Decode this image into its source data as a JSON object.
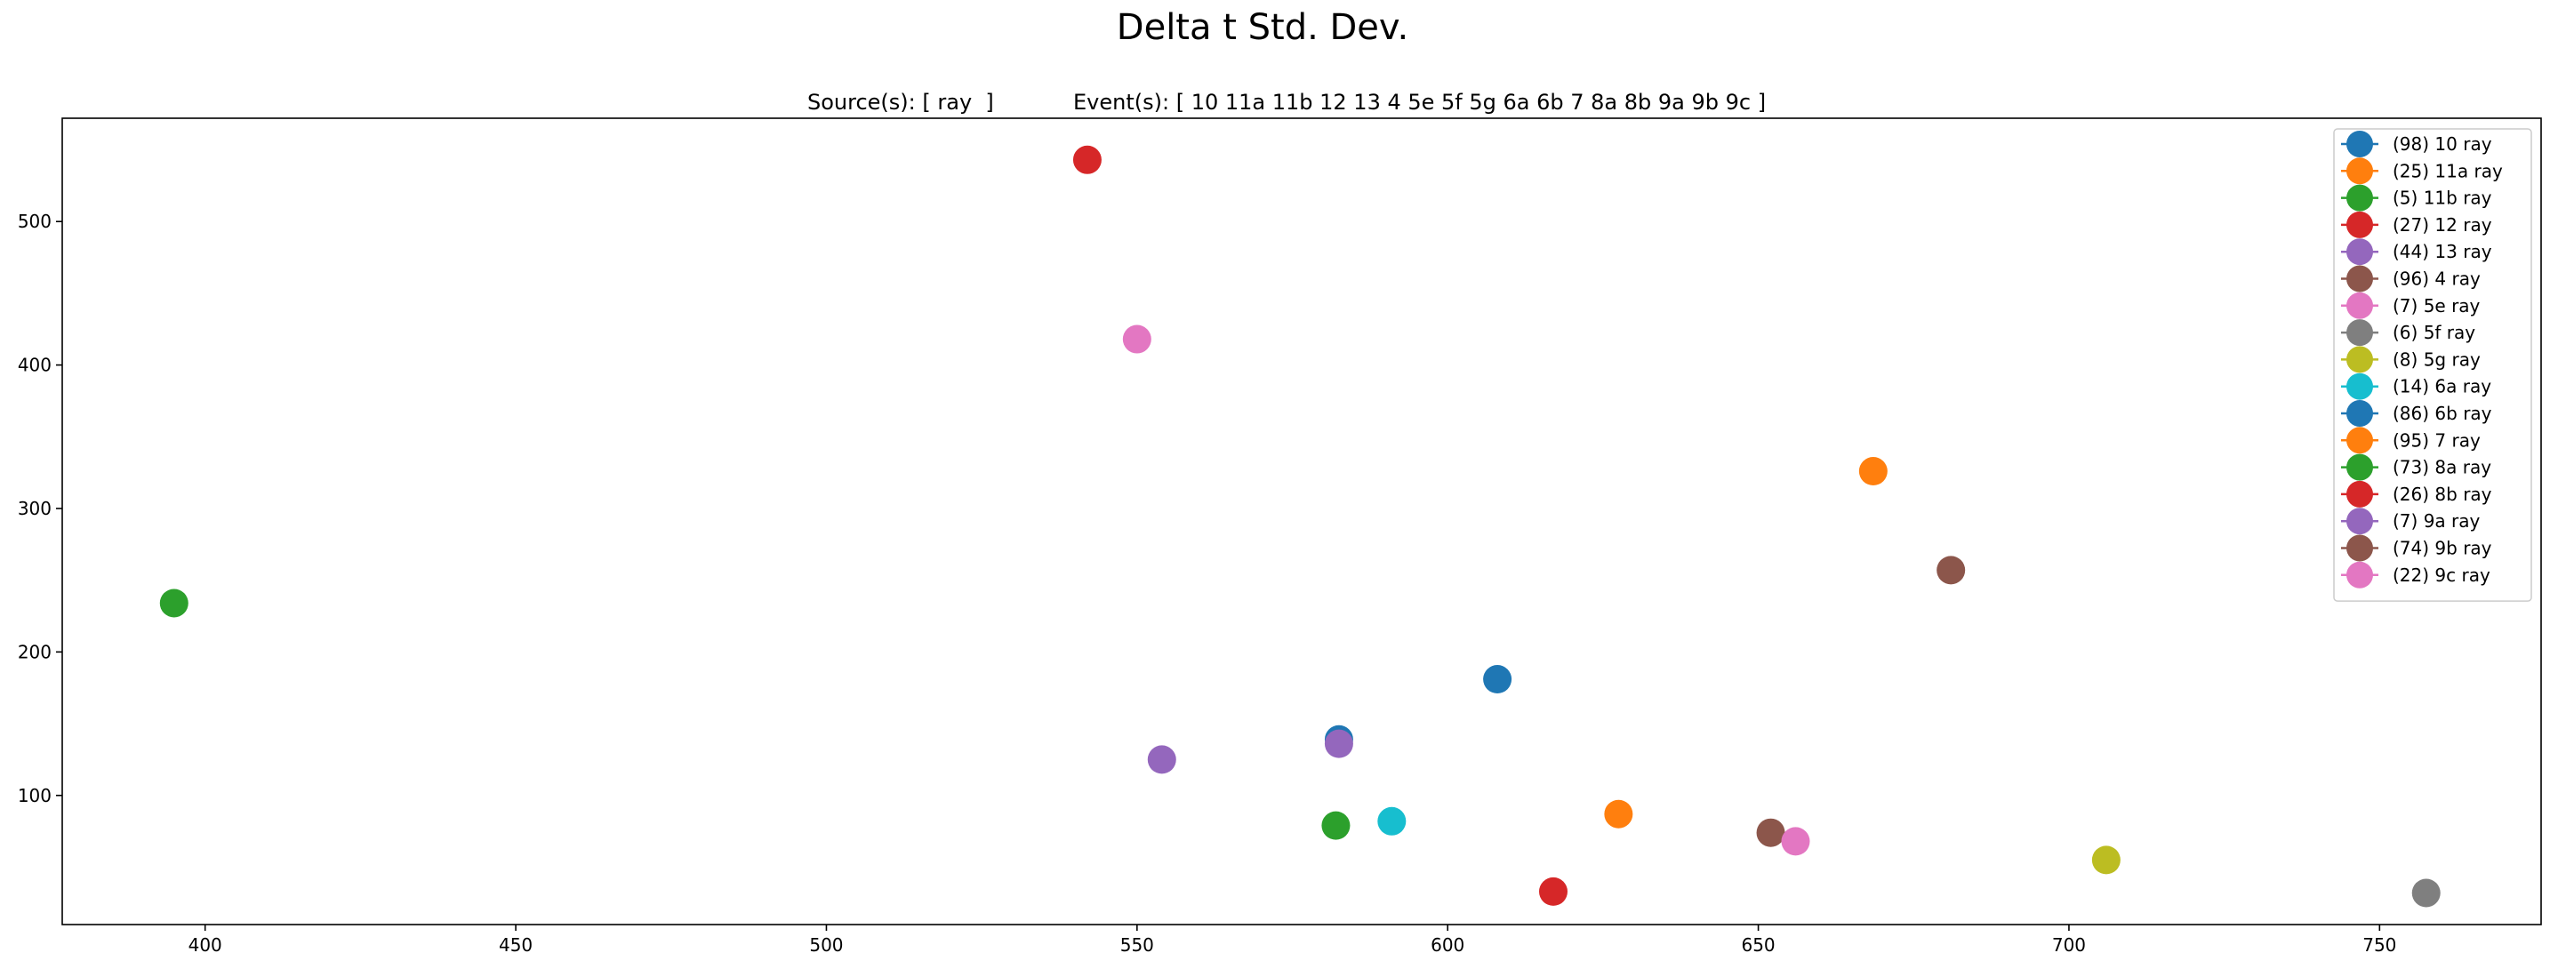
{
  "figure": {
    "title": "Delta t Std. Dev.",
    "subtitle_sources": "Source(s): [ ray  ]",
    "subtitle_events": "Event(s): [ 10 11a 11b 12 13 4 5e 5f 5g 6a 6b 7 8a 8b 9a 9b 9c ]"
  },
  "chart_data": {
    "type": "scatter",
    "title": "Delta t Std. Dev.",
    "xlabel": "",
    "ylabel": "",
    "xlim": [
      377,
      776
    ],
    "ylim": [
      10,
      572
    ],
    "xticks": [
      400,
      450,
      500,
      550,
      600,
      650,
      700,
      750
    ],
    "yticks": [
      100,
      200,
      300,
      400,
      500
    ],
    "grid": false,
    "legend_position": "top-right",
    "series": [
      {
        "name": "(98)  10   ray",
        "color": "#1f77b4",
        "x": [
          582.5
        ],
        "y": [
          139
        ]
      },
      {
        "name": "(25)  11a   ray",
        "color": "#ff7f0e",
        "x": [
          627.5
        ],
        "y": [
          87
        ]
      },
      {
        "name": "(5)  11b   ray",
        "color": "#2ca02c",
        "x": [
          582
        ],
        "y": [
          79
        ]
      },
      {
        "name": "(27)  12   ray",
        "color": "#d62728",
        "x": [
          617
        ],
        "y": [
          33
        ]
      },
      {
        "name": "(44)  13   ray",
        "color": "#9467bd",
        "x": [
          554
        ],
        "y": [
          125
        ]
      },
      {
        "name": "(96)  4   ray",
        "color": "#8c564b",
        "x": [
          652
        ],
        "y": [
          74
        ]
      },
      {
        "name": "(7)  5e   ray",
        "color": "#e377c2",
        "x": [
          656
        ],
        "y": [
          68
        ]
      },
      {
        "name": "(6)  5f   ray",
        "color": "#7f7f7f",
        "x": [
          757.5
        ],
        "y": [
          32
        ]
      },
      {
        "name": "(8)  5g   ray",
        "color": "#bcbd22",
        "x": [
          706
        ],
        "y": [
          55
        ]
      },
      {
        "name": "(14)  6a   ray",
        "color": "#17becf",
        "x": [
          591
        ],
        "y": [
          82
        ]
      },
      {
        "name": "(86)  6b   ray",
        "color": "#1f77b4",
        "x": [
          608
        ],
        "y": [
          181
        ]
      },
      {
        "name": "(95)  7   ray",
        "color": "#ff7f0e",
        "x": [
          668.5
        ],
        "y": [
          326
        ]
      },
      {
        "name": "(73)  8a   ray",
        "color": "#2ca02c",
        "x": [
          395
        ],
        "y": [
          234
        ]
      },
      {
        "name": "(26)  8b   ray",
        "color": "#d62728",
        "x": [
          542
        ],
        "y": [
          543
        ]
      },
      {
        "name": "(7)  9a   ray",
        "color": "#9467bd",
        "x": [
          582.5
        ],
        "y": [
          136
        ]
      },
      {
        "name": "(74)  9b   ray",
        "color": "#8c564b",
        "x": [
          681
        ],
        "y": [
          257
        ]
      },
      {
        "name": "(22)  9c   ray",
        "color": "#e377c2",
        "x": [
          550
        ],
        "y": [
          418
        ]
      }
    ]
  }
}
